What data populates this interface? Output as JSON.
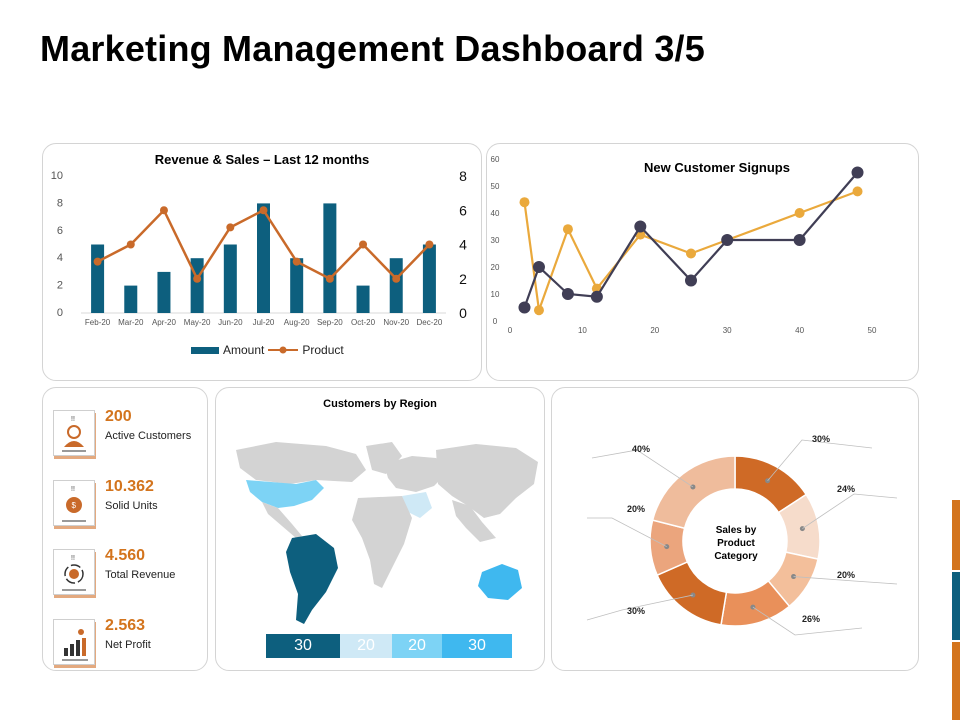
{
  "header": {
    "title": "Marketing Management Dashboard 3/5"
  },
  "colors": {
    "teal": "#0d5f7e",
    "orange": "#c96a2a",
    "navy": "#403e55",
    "gold": "#eaa93c",
    "accent": "#d3741d"
  },
  "revenue_chart": {
    "title": "Revenue & Sales – Last 12 months",
    "legend": {
      "amount": "Amount",
      "product": "Product"
    }
  },
  "signup_chart": {
    "title": "New Customer Signups"
  },
  "region": {
    "title": "Customers by Region",
    "segments": [
      "30",
      "20",
      "20",
      "30"
    ]
  },
  "donut": {
    "center_label": "Sales by Product Category"
  },
  "kpis": [
    {
      "value": "200",
      "label": "Active Customers",
      "icon": "support-agent-icon"
    },
    {
      "value": "10.362",
      "label": "Solid Units",
      "icon": "coin-bag-icon"
    },
    {
      "value": "4.560",
      "label": "Total Revenue",
      "icon": "dollar-cycle-icon"
    },
    {
      "value": "2.563",
      "label": "Net Profit",
      "icon": "growth-bars-icon"
    }
  ],
  "chart_data": [
    {
      "type": "bar",
      "title": "Revenue & Sales – Last 12 months",
      "categories": [
        "Feb-20",
        "Mar-20",
        "Apr-20",
        "May-20",
        "Jun-20",
        "Jul-20",
        "Aug-20",
        "Sep-20",
        "Oct-20",
        "Nov-20",
        "Dec-20"
      ],
      "series": [
        {
          "name": "Amount",
          "type": "bar",
          "axis": "left",
          "values": [
            5,
            2,
            3,
            4,
            5,
            8,
            4,
            8,
            2,
            4,
            5
          ]
        },
        {
          "name": "Product",
          "type": "line",
          "axis": "right",
          "values": [
            3,
            4,
            6,
            2,
            5,
            6,
            3,
            2,
            4,
            2,
            4
          ]
        }
      ],
      "ylim_left": [
        0,
        10
      ],
      "yticks_left": [
        0,
        2,
        4,
        6,
        8,
        10
      ],
      "ylim_right": [
        0,
        8
      ],
      "yticks_right": [
        0,
        2,
        4,
        6,
        8
      ],
      "legend": "bottom",
      "grid": false
    },
    {
      "type": "line",
      "title": "New Customer Signups",
      "xlim": [
        0,
        50
      ],
      "xticks": [
        0,
        10,
        20,
        30,
        40,
        50
      ],
      "ylim": [
        0,
        60
      ],
      "yticks": [
        0,
        10,
        20,
        30,
        40,
        50,
        60
      ],
      "series": [
        {
          "color": "#403e55",
          "points": [
            [
              2,
              5
            ],
            [
              4,
              20
            ],
            [
              8,
              10
            ],
            [
              12,
              9
            ],
            [
              18,
              35
            ],
            [
              25,
              15
            ],
            [
              30,
              30
            ],
            [
              40,
              30
            ],
            [
              48,
              55
            ]
          ]
        },
        {
          "color": "#eaa93c",
          "points": [
            [
              2,
              44
            ],
            [
              4,
              4
            ],
            [
              8,
              34
            ],
            [
              12,
              12
            ],
            [
              18,
              32
            ],
            [
              25,
              25
            ],
            [
              30,
              30
            ],
            [
              40,
              40
            ],
            [
              48,
              48
            ]
          ]
        }
      ],
      "grid": false
    },
    {
      "type": "pie",
      "title": "Sales by Product Category",
      "donut": true,
      "labels": [
        "30%",
        "24%",
        "20%",
        "26%",
        "30%",
        "20%",
        "40%"
      ],
      "values": [
        30,
        24,
        20,
        26,
        30,
        20,
        40
      ],
      "colors": [
        "#cf6a26",
        "#f6dccb",
        "#f3bf9b",
        "#e9905a",
        "#cf6a26",
        "#eba57d",
        "#efbc9c"
      ]
    }
  ]
}
